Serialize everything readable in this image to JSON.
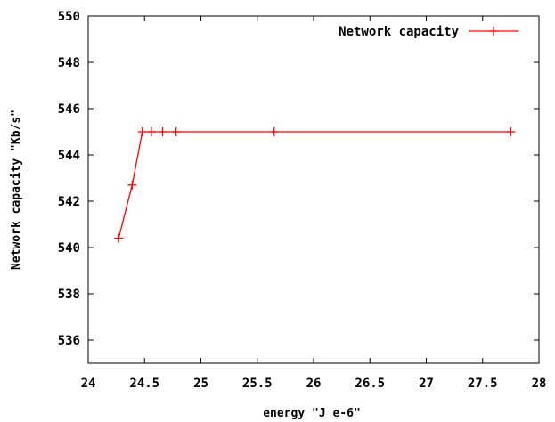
{
  "chart_data": {
    "type": "line",
    "xlabel": "energy \"J e-6\"",
    "ylabel": "Network capacity \"Kb/s\"",
    "xlim": [
      24,
      28
    ],
    "ylim": [
      535,
      550
    ],
    "xticks": [
      24,
      24.5,
      25,
      25.5,
      26,
      26.5,
      27,
      27.5,
      28
    ],
    "xtick_labels": [
      "24",
      "24.5",
      "25",
      "25.5",
      "26",
      "26.5",
      "27",
      "27.5",
      "28"
    ],
    "yticks": [
      536,
      538,
      540,
      542,
      544,
      546,
      548,
      550
    ],
    "ytick_labels": [
      "536",
      "538",
      "540",
      "542",
      "544",
      "546",
      "548",
      "550"
    ],
    "grid": false,
    "legend_position": "top-right",
    "series": [
      {
        "name": "Network capacity",
        "color": "#ff0000",
        "marker": "plus",
        "x": [
          24.27,
          24.39,
          24.48,
          24.56,
          24.66,
          24.78,
          25.65,
          27.75
        ],
        "y": [
          540.4,
          542.7,
          545.0,
          545.0,
          545.0,
          545.0,
          545.0,
          545.0
        ]
      }
    ]
  }
}
